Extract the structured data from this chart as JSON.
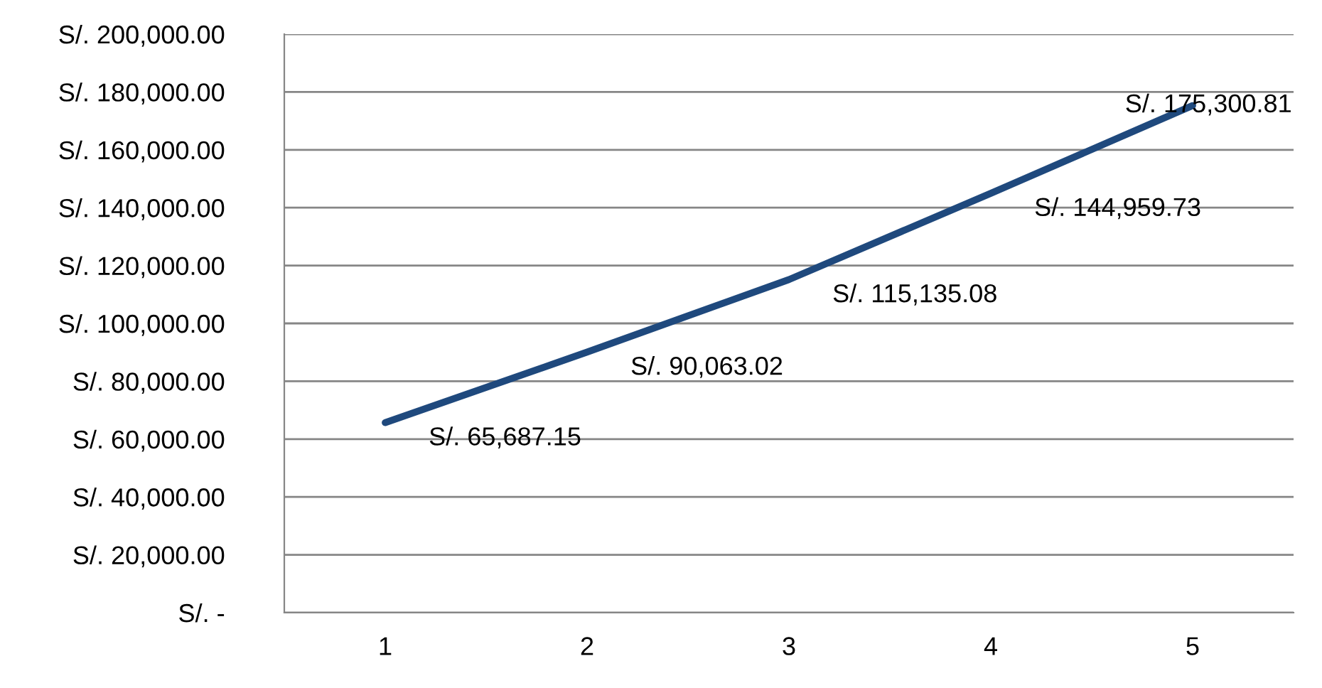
{
  "chart_data": {
    "type": "line",
    "categories": [
      "1",
      "2",
      "3",
      "4",
      "5"
    ],
    "series": [
      {
        "color": "#1f497d",
        "values": [
          65687.15,
          90063.02,
          115135.08,
          144959.73,
          175300.81
        ]
      }
    ],
    "value_labels": [
      "S/. 65,687.15",
      "S/. 90,063.02",
      "S/. 115,135.08",
      "S/. 144,959.73",
      "S/. 175,300.81"
    ],
    "ylim": [
      0,
      200000
    ],
    "yticks": [
      {
        "value": 0,
        "label": "S/. -"
      },
      {
        "value": 20000,
        "label": "S/. 20,000.00"
      },
      {
        "value": 40000,
        "label": "S/. 40,000.00"
      },
      {
        "value": 60000,
        "label": "S/. 60,000.00"
      },
      {
        "value": 80000,
        "label": "S/. 80,000.00"
      },
      {
        "value": 100000,
        "label": "S/. 100,000.00"
      },
      {
        "value": 120000,
        "label": "S/. 120,000.00"
      },
      {
        "value": 140000,
        "label": "S/. 140,000.00"
      },
      {
        "value": 160000,
        "label": "S/. 160,000.00"
      },
      {
        "value": 180000,
        "label": "S/. 180,000.00"
      },
      {
        "value": 200000,
        "label": "S/. 200,000.00"
      }
    ],
    "grid": "y",
    "legend": false,
    "marker": "none",
    "line_style": "solid"
  }
}
